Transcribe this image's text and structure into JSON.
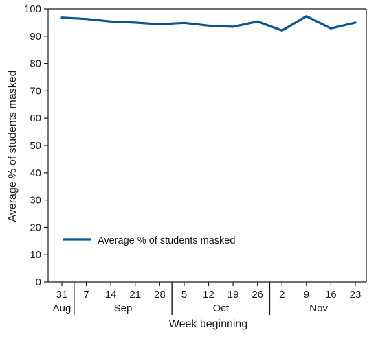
{
  "chart_data": {
    "type": "line",
    "title": "",
    "xlabel": "Week beginning",
    "ylabel": "Average % of students masked",
    "ylim": [
      0,
      100
    ],
    "yticks": [
      0,
      10,
      20,
      30,
      40,
      50,
      60,
      70,
      80,
      90,
      100
    ],
    "categories": [
      "31",
      "7",
      "14",
      "21",
      "28",
      "5",
      "12",
      "19",
      "26",
      "2",
      "9",
      "16",
      "23"
    ],
    "month_groups": [
      {
        "label": "Aug",
        "start": 0,
        "end": 0
      },
      {
        "label": "Sep",
        "start": 1,
        "end": 4
      },
      {
        "label": "Oct",
        "start": 5,
        "end": 8
      },
      {
        "label": "Nov",
        "start": 9,
        "end": 12
      }
    ],
    "series": [
      {
        "name": "Average % of students masked",
        "color": "#0b5394",
        "values": [
          96.8,
          96.3,
          95.4,
          95.0,
          94.4,
          94.9,
          93.9,
          93.5,
          95.4,
          92.1,
          97.3,
          92.9,
          95.0
        ]
      }
    ],
    "legend": {
      "position": "lower-left",
      "label": "Average % of students masked"
    },
    "grid": false,
    "colors": {
      "axis": "#1a1a1a",
      "line": "#0b5394"
    }
  }
}
